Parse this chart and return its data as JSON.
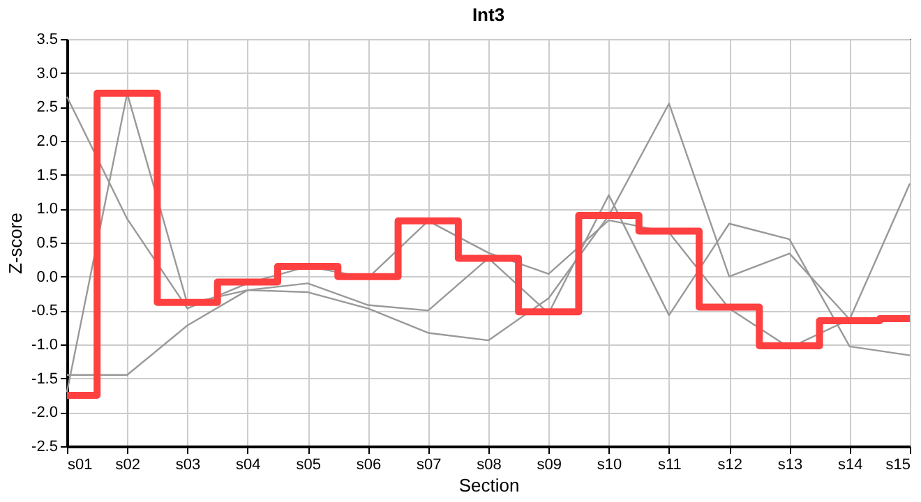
{
  "chart_data": {
    "type": "line",
    "title": "Int3",
    "xlabel": "Section",
    "ylabel": "Z-score",
    "categories": [
      "s01",
      "s02",
      "s03",
      "s04",
      "s05",
      "s06",
      "s07",
      "s08",
      "s09",
      "s10",
      "s11",
      "s12",
      "s13",
      "s14",
      "s15"
    ],
    "series": [
      {
        "color": "#999999",
        "type": "line",
        "values": [
          2.65,
          0.85,
          -0.47,
          -0.1,
          0.15,
          -0.02,
          0.82,
          0.35,
          0.04,
          0.83,
          0.65,
          -0.47,
          -1.05,
          -0.63,
          -0.62
        ]
      },
      {
        "color": "#999999",
        "type": "line",
        "values": [
          -1.7,
          2.7,
          -0.4,
          -0.2,
          -0.1,
          -0.42,
          -0.5,
          0.27,
          -0.54,
          1.2,
          -0.57,
          0.78,
          0.55,
          -1.03,
          -1.16
        ]
      },
      {
        "color": "#999999",
        "type": "line",
        "values": [
          -1.45,
          -1.45,
          -0.72,
          -0.2,
          -0.23,
          -0.47,
          -0.83,
          -0.94,
          -0.32,
          0.9,
          2.55,
          0.0,
          0.34,
          -0.63,
          1.37
        ]
      },
      {
        "color": "#ff4040",
        "type": "step",
        "values": [
          -1.75,
          2.7,
          -0.38,
          -0.08,
          0.15,
          0.0,
          0.82,
          0.27,
          -0.52,
          0.9,
          0.67,
          -0.45,
          -1.02,
          -0.65,
          -0.62
        ]
      }
    ],
    "ylim": [
      -2.5,
      3.5
    ],
    "yticks": [
      {
        "value": -2.5,
        "label": "-2.5"
      },
      {
        "value": -2,
        "label": "-2.0"
      },
      {
        "value": -1.5,
        "label": "-1.5"
      },
      {
        "value": -1,
        "label": "-1.0"
      },
      {
        "value": -0.5,
        "label": "-0.5"
      },
      {
        "value": 0,
        "label": "0.0"
      },
      {
        "value": 0.5,
        "label": "0.5"
      },
      {
        "value": 1,
        "label": "1.0"
      },
      {
        "value": 1.5,
        "label": "1.5"
      },
      {
        "value": 2,
        "label": "2.0"
      },
      {
        "value": 2.5,
        "label": "2.5"
      },
      {
        "value": 3,
        "label": "3.0"
      },
      {
        "value": 3.5,
        "label": "3.5"
      }
    ],
    "grid": true,
    "legend": false
  }
}
